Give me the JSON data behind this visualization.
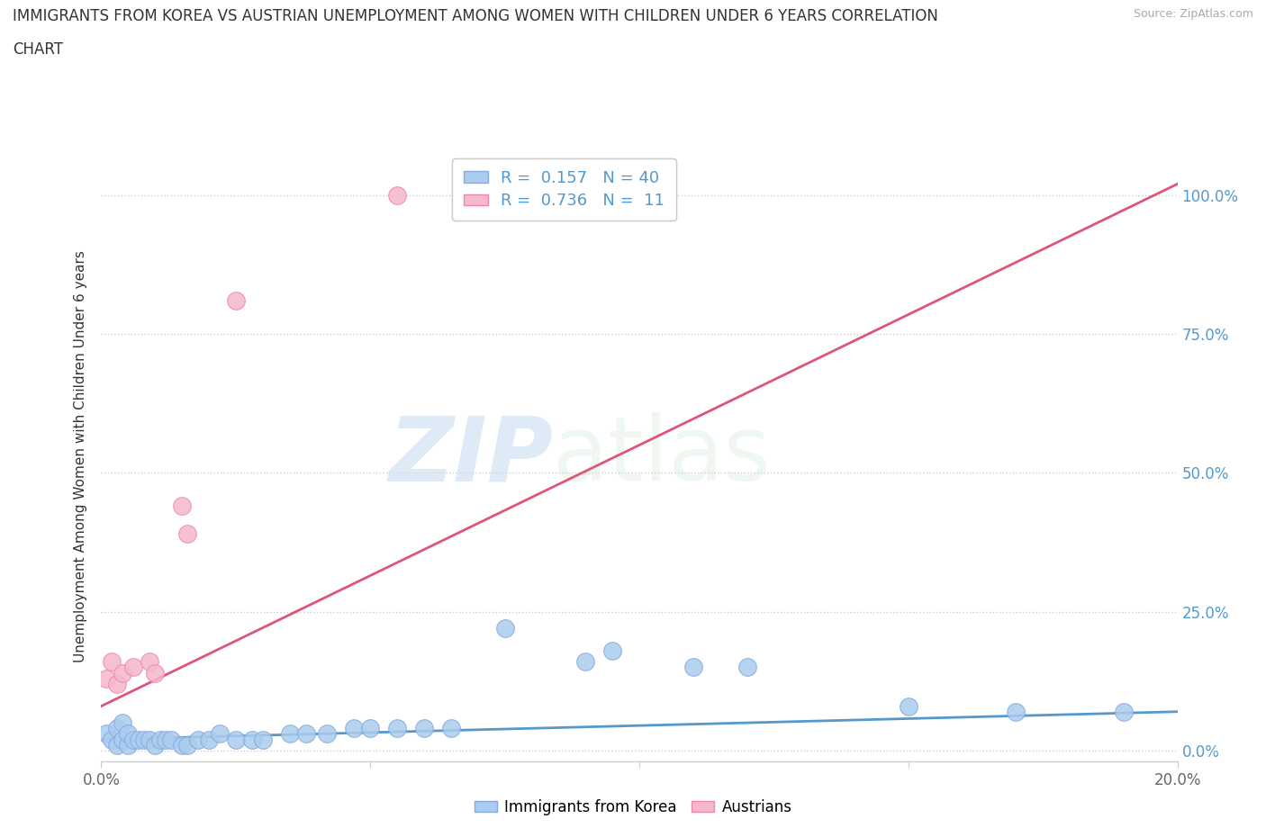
{
  "title_line1": "IMMIGRANTS FROM KOREA VS AUSTRIAN UNEMPLOYMENT AMONG WOMEN WITH CHILDREN UNDER 6 YEARS CORRELATION",
  "title_line2": "CHART",
  "source": "Source: ZipAtlas.com",
  "ylabel": "Unemployment Among Women with Children Under 6 years",
  "xlim": [
    0.0,
    0.2
  ],
  "ylim": [
    -0.02,
    1.08
  ],
  "yticks": [
    0.0,
    0.25,
    0.5,
    0.75,
    1.0
  ],
  "ytick_labels_right": [
    "0.0%",
    "25.0%",
    "50.0%",
    "75.0%",
    "100.0%"
  ],
  "xticks": [
    0.0,
    0.05,
    0.1,
    0.15,
    0.2
  ],
  "xtick_labels": [
    "0.0%",
    "",
    "",
    "",
    "20.0%"
  ],
  "watermark_zip": "ZIP",
  "watermark_atlas": "atlas",
  "legend_r1": "R =  0.157",
  "legend_n1": "N = 40",
  "legend_r2": "R =  0.736",
  "legend_n2": "N =  11",
  "blue_color": "#aaccee",
  "pink_color": "#f5b8cc",
  "blue_edge_color": "#88aadd",
  "pink_edge_color": "#ee88aa",
  "blue_line_color": "#5599cc",
  "pink_line_color": "#dd5577",
  "background_color": "#ffffff",
  "blue_scatter_x": [
    0.001,
    0.002,
    0.003,
    0.003,
    0.004,
    0.004,
    0.005,
    0.005,
    0.006,
    0.007,
    0.008,
    0.009,
    0.01,
    0.011,
    0.012,
    0.013,
    0.015,
    0.016,
    0.018,
    0.02,
    0.022,
    0.025,
    0.028,
    0.03,
    0.035,
    0.038,
    0.042,
    0.047,
    0.05,
    0.055,
    0.06,
    0.065,
    0.075,
    0.09,
    0.095,
    0.11,
    0.12,
    0.15,
    0.17,
    0.19
  ],
  "blue_scatter_y": [
    0.03,
    0.02,
    0.01,
    0.04,
    0.02,
    0.05,
    0.01,
    0.03,
    0.02,
    0.02,
    0.02,
    0.02,
    0.01,
    0.02,
    0.02,
    0.02,
    0.01,
    0.01,
    0.02,
    0.02,
    0.03,
    0.02,
    0.02,
    0.02,
    0.03,
    0.03,
    0.03,
    0.04,
    0.04,
    0.04,
    0.04,
    0.04,
    0.22,
    0.16,
    0.18,
    0.15,
    0.15,
    0.08,
    0.07,
    0.07
  ],
  "pink_scatter_x": [
    0.001,
    0.002,
    0.003,
    0.004,
    0.006,
    0.009,
    0.01,
    0.015,
    0.016,
    0.025,
    0.055
  ],
  "pink_scatter_y": [
    0.13,
    0.16,
    0.12,
    0.14,
    0.15,
    0.16,
    0.14,
    0.44,
    0.39,
    0.81,
    1.0
  ],
  "blue_line_x": [
    0.0,
    0.2
  ],
  "blue_line_y": [
    0.02,
    0.07
  ],
  "pink_line_x": [
    0.0,
    0.2
  ],
  "pink_line_y": [
    0.08,
    1.02
  ]
}
